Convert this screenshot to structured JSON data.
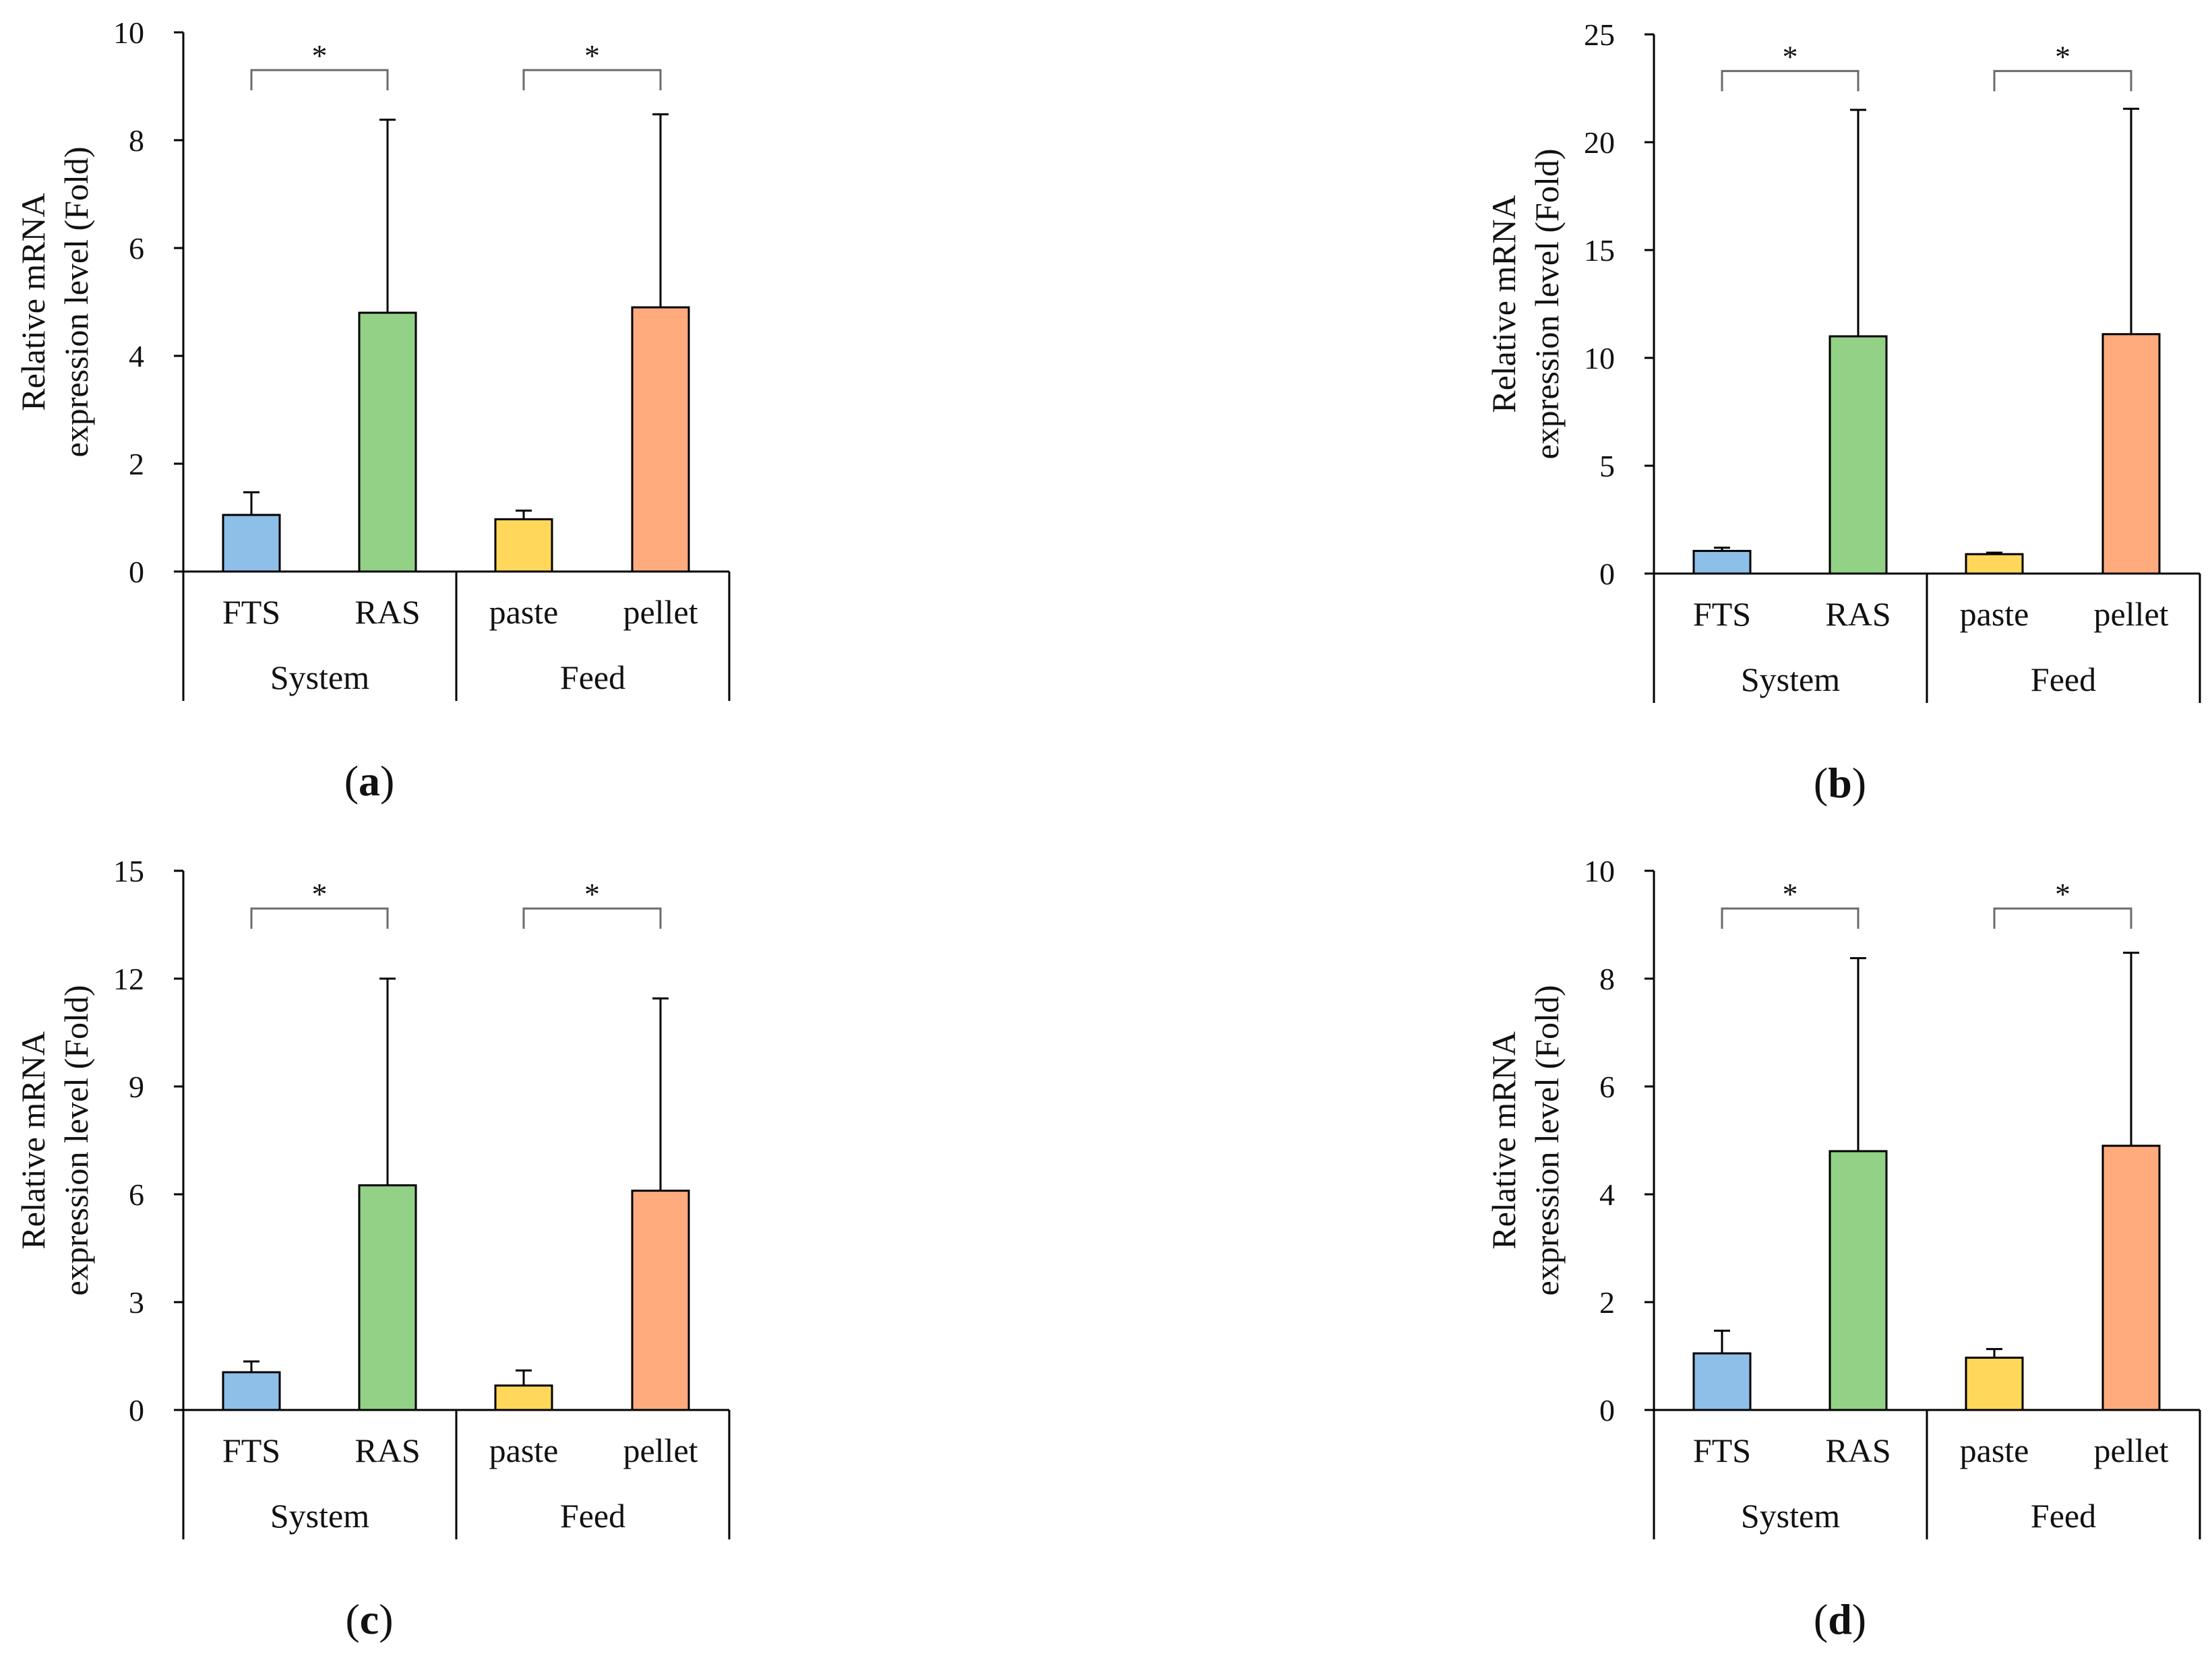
{
  "figure": {
    "colors": {
      "FTS": "#8dbfe8",
      "RAS": "#92d186",
      "paste": "#ffd75a",
      "pellet": "#ffab7d",
      "axis": "#000000",
      "bracket": "#6b6b6b"
    }
  },
  "chart_data": [
    {
      "type": "bar",
      "panel": "a",
      "panel_label": {
        "open": "(",
        "letter": "a",
        "close": ")"
      },
      "ylabel": [
        "Relative mRNA",
        "expression level (Fold)"
      ],
      "ylim": [
        0,
        10
      ],
      "yticks": [
        0,
        2,
        4,
        6,
        8,
        10
      ],
      "groups": [
        {
          "name": "System",
          "categories": [
            "FTS",
            "RAS"
          ]
        },
        {
          "name": "Feed",
          "categories": [
            "paste",
            "pellet"
          ]
        }
      ],
      "categories": [
        "FTS",
        "RAS",
        "paste",
        "pellet"
      ],
      "values": [
        1.05,
        4.8,
        0.97,
        4.9
      ],
      "errors": [
        0.42,
        3.58,
        0.16,
        3.58
      ],
      "significance": [
        {
          "from": "FTS",
          "to": "RAS",
          "label": "*",
          "y": 9.3
        },
        {
          "from": "paste",
          "to": "pellet",
          "label": "*",
          "y": 9.3
        }
      ]
    },
    {
      "type": "bar",
      "panel": "b",
      "panel_label": {
        "open": "(",
        "letter": "b",
        "close": ")"
      },
      "ylabel": [
        "Relative mRNA",
        "expression level (Fold)"
      ],
      "ylim": [
        0,
        25
      ],
      "yticks": [
        0,
        5,
        10,
        15,
        20,
        25
      ],
      "groups": [
        {
          "name": "System",
          "categories": [
            "FTS",
            "RAS"
          ]
        },
        {
          "name": "Feed",
          "categories": [
            "paste",
            "pellet"
          ]
        }
      ],
      "categories": [
        "FTS",
        "RAS",
        "paste",
        "pellet"
      ],
      "values": [
        1.05,
        11.0,
        0.9,
        11.1
      ],
      "errors": [
        0.15,
        10.5,
        0.07,
        10.45
      ],
      "significance": [
        {
          "from": "FTS",
          "to": "RAS",
          "label": "*",
          "y": 23.3
        },
        {
          "from": "paste",
          "to": "pellet",
          "label": "*",
          "y": 23.3
        }
      ]
    },
    {
      "type": "bar",
      "panel": "c",
      "panel_label": {
        "open": "(",
        "letter": "c",
        "close": ")"
      },
      "ylabel": [
        "Relative mRNA",
        "expression level (Fold)"
      ],
      "ylim": [
        0,
        15
      ],
      "yticks": [
        0,
        3,
        6,
        9,
        12,
        15
      ],
      "groups": [
        {
          "name": "System",
          "categories": [
            "FTS",
            "RAS"
          ]
        },
        {
          "name": "Feed",
          "categories": [
            "paste",
            "pellet"
          ]
        }
      ],
      "categories": [
        "FTS",
        "RAS",
        "paste",
        "pellet"
      ],
      "values": [
        1.05,
        6.25,
        0.68,
        6.1
      ],
      "errors": [
        0.3,
        5.75,
        0.42,
        5.35
      ],
      "significance": [
        {
          "from": "FTS",
          "to": "RAS",
          "label": "*",
          "y": 13.95
        },
        {
          "from": "paste",
          "to": "pellet",
          "label": "*",
          "y": 13.95
        }
      ]
    },
    {
      "type": "bar",
      "panel": "d",
      "panel_label": {
        "open": "(",
        "letter": "d",
        "close": ")"
      },
      "ylabel": [
        "Relative mRNA",
        "expression level (Fold)"
      ],
      "ylim": [
        0,
        10
      ],
      "yticks": [
        0,
        2,
        4,
        6,
        8,
        10
      ],
      "groups": [
        {
          "name": "System",
          "categories": [
            "FTS",
            "RAS"
          ]
        },
        {
          "name": "Feed",
          "categories": [
            "paste",
            "pellet"
          ]
        }
      ],
      "categories": [
        "FTS",
        "RAS",
        "paste",
        "pellet"
      ],
      "values": [
        1.05,
        4.8,
        0.97,
        4.9
      ],
      "errors": [
        0.42,
        3.58,
        0.16,
        3.58
      ],
      "significance": [
        {
          "from": "FTS",
          "to": "RAS",
          "label": "*",
          "y": 9.3
        },
        {
          "from": "paste",
          "to": "pellet",
          "label": "*",
          "y": 9.3
        }
      ]
    }
  ]
}
